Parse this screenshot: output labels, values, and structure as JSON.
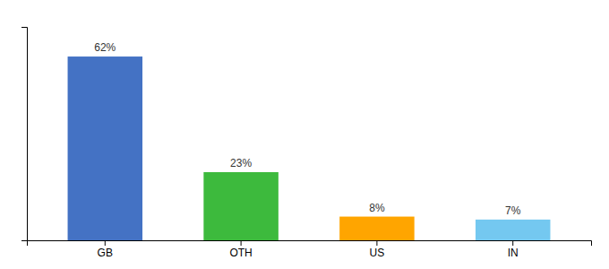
{
  "chart_data": {
    "type": "bar",
    "categories": [
      "GB",
      "OTH",
      "US",
      "IN"
    ],
    "values": [
      62,
      23,
      8,
      7
    ],
    "value_labels": [
      "62%",
      "23%",
      "8%",
      "7%"
    ],
    "colors": [
      "#4472c4",
      "#3dba3d",
      "#ffa500",
      "#74c8f0"
    ],
    "ylim": [
      0,
      72
    ],
    "data_labels": true,
    "tick_labels": "x",
    "grid": false
  }
}
